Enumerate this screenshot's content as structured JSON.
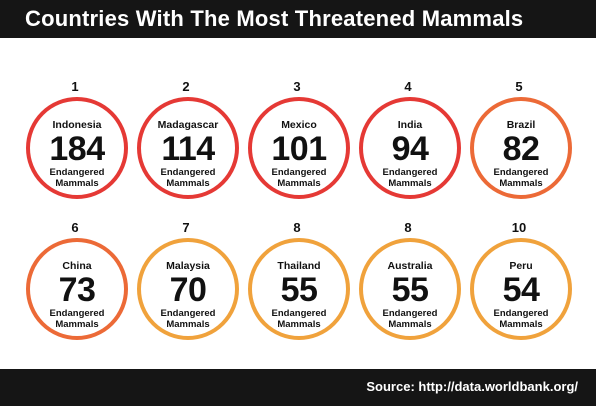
{
  "title": "Countries With The Most Threatened Mammals",
  "source": "Source: http://data.worldbank.org/",
  "colors": {
    "red": "#e53935",
    "orange_red": "#ec6a37",
    "orange": "#f0a23c",
    "dark": "#151515"
  },
  "chart_data": {
    "type": "table",
    "title": "Countries With The Most Threatened Mammals",
    "unit_label": [
      "Endangered",
      "Mammals"
    ],
    "items": [
      {
        "rank": "1",
        "country": "Indonesia",
        "value": 184,
        "color": "#e53935"
      },
      {
        "rank": "2",
        "country": "Madagascar",
        "value": 114,
        "color": "#e53935"
      },
      {
        "rank": "3",
        "country": "Mexico",
        "value": 101,
        "color": "#e53935"
      },
      {
        "rank": "4",
        "country": "India",
        "value": 94,
        "color": "#e53935"
      },
      {
        "rank": "5",
        "country": "Brazil",
        "value": 82,
        "color": "#ec6a37"
      },
      {
        "rank": "6",
        "country": "China",
        "value": 73,
        "color": "#ec6a37"
      },
      {
        "rank": "7",
        "country": "Malaysia",
        "value": 70,
        "color": "#f0a23c"
      },
      {
        "rank": "8",
        "country": "Thailand",
        "value": 55,
        "color": "#f0a23c"
      },
      {
        "rank": "8",
        "country": "Australia",
        "value": 55,
        "color": "#f0a23c"
      },
      {
        "rank": "10",
        "country": "Peru",
        "value": 54,
        "color": "#f0a23c"
      }
    ]
  }
}
